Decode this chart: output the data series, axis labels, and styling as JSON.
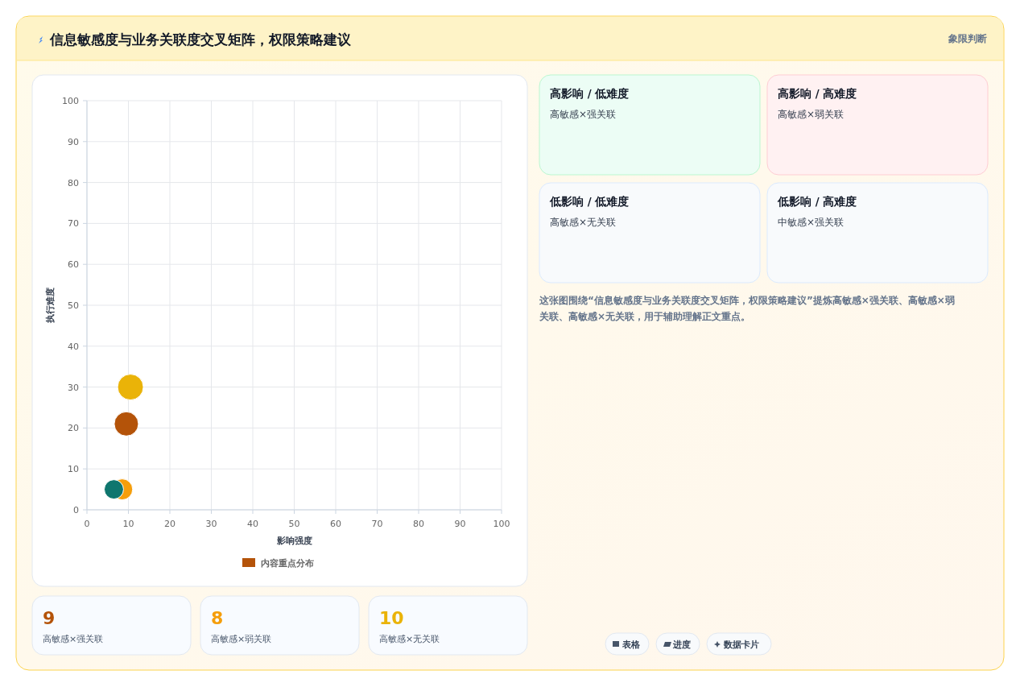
{
  "chart_data": [
    {
      "type": "bubble",
      "title": "信息敏感度与业务关联度交叉矩阵，权限策略建议",
      "xlabel": "影响强度",
      "ylabel": "执行难度",
      "xlim": [
        0,
        100
      ],
      "xticks": [
        0,
        10,
        20,
        30,
        40,
        50,
        60,
        70,
        80,
        90,
        100
      ],
      "ylim": [
        0,
        100
      ],
      "yticks": [
        0,
        10,
        20,
        30,
        40,
        50,
        60,
        70,
        80,
        90,
        100
      ],
      "grid": true,
      "legend": "bottom",
      "marker": "circle",
      "series": [
        {
          "name": "内容重点分布",
          "color": "#b45309",
          "colors": [
            "#b45309",
            "#f59e0b",
            "#eab308",
            "#0f766e"
          ],
          "x": [
            9.5,
            8.5,
            10.5,
            6.5
          ],
          "values": [
            21,
            5,
            30,
            5
          ],
          "sizes": [
            0.88,
            0.66,
            1,
            0.56
          ]
        }
      ]
    },
    {
      "type": "other",
      "annotations": [
        "象限判断",
        "高影响 / 低难度",
        "高敏感×强关联",
        "高影响 / 高难度",
        "高敏感×弱关联",
        "低影响 / 低难度",
        "高敏感×无关联",
        "低影响 / 高难度",
        "中敏感×强关联",
        "这张图围绕“信息敏感度与业务关联度交叉矩阵，权限策略建议”提炼高敏感×强关联、高敏感×弱关联、高敏感×无关联，用于辅助理解正文重点。",
        "表格",
        "进度",
        "数据卡片"
      ]
    },
    {
      "type": "other",
      "colors": [
        "#b45309",
        "#f59e0b",
        "#eab308"
      ],
      "annotations": [
        "9",
        "高敏感×强关联",
        "8",
        "高敏感×弱关联",
        "10",
        "高敏感×无关联"
      ]
    }
  ]
}
